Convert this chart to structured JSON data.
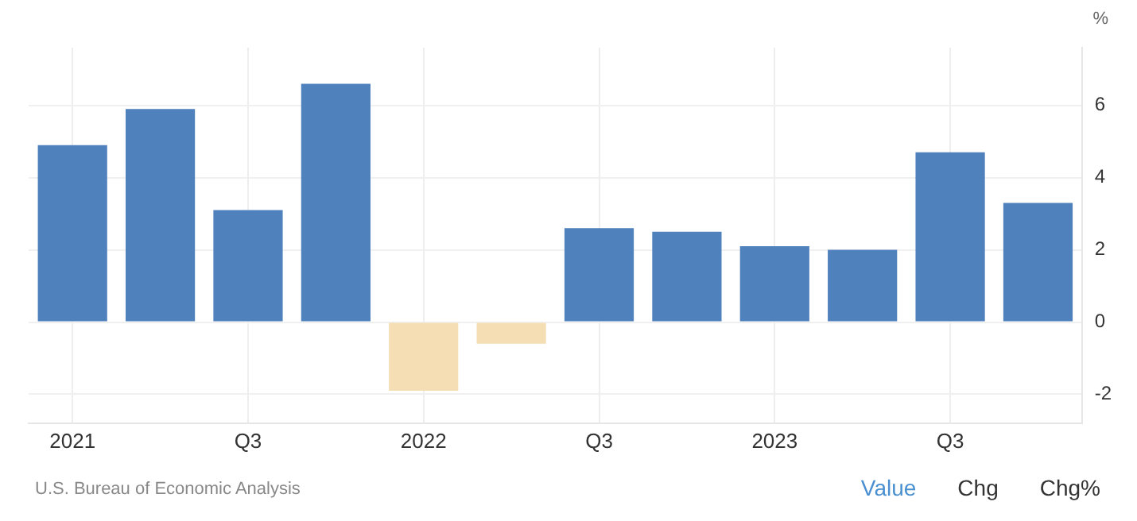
{
  "chart_data": {
    "type": "bar",
    "ylabel": "%",
    "categories": [
      "2021",
      null,
      "Q3",
      null,
      "2022",
      null,
      "Q3",
      null,
      "2023",
      null,
      "Q3",
      null
    ],
    "values": [
      4.9,
      5.9,
      3.1,
      6.6,
      -1.9,
      -0.6,
      2.6,
      2.5,
      2.1,
      2.0,
      4.7,
      3.3
    ],
    "colors": [
      "#4f81bd",
      "#4f81bd",
      "#4f81bd",
      "#4f81bd",
      "#f5deb3",
      "#f5deb3",
      "#4f81bd",
      "#4f81bd",
      "#4f81bd",
      "#4f81bd",
      "#4f81bd",
      "#4f81bd"
    ],
    "ylim": [
      -2.8,
      7.6
    ],
    "yticks": [
      -2,
      0,
      2,
      4,
      6
    ],
    "grid": true,
    "legend": false,
    "annotations": [
      "U.S. Bureau of Economic Analysis",
      "Value",
      "Chg",
      "Chg%"
    ]
  }
}
